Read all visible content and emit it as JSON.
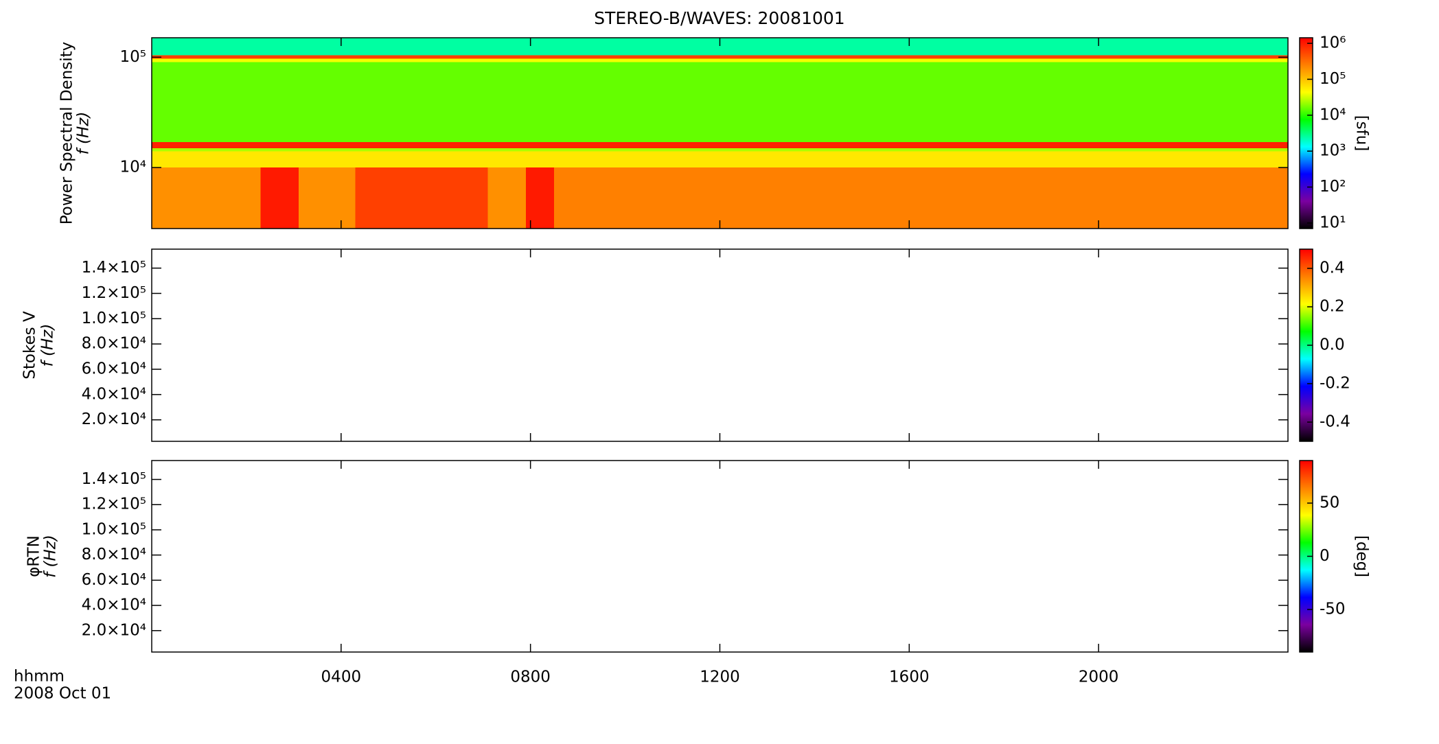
{
  "title": "STEREO-B/WAVES: 20081001",
  "time_axis": {
    "label": "hhmm",
    "date": "2008 Oct 01",
    "xlim": [
      0,
      24
    ],
    "xticks": [
      {
        "value": 4,
        "label": "0400"
      },
      {
        "value": 8,
        "label": "0800"
      },
      {
        "value": 12,
        "label": "1200"
      },
      {
        "value": 16,
        "label": "1600"
      },
      {
        "value": 20,
        "label": "2000"
      }
    ]
  },
  "chart_data": [
    {
      "type": "heatmap",
      "ylabel": [
        "Power Spectral Density",
        "f (Hz)"
      ],
      "ylog": true,
      "ylim": [
        2800,
        150000
      ],
      "yticks": [
        {
          "value": 10000,
          "label": "10⁴"
        },
        {
          "value": 100000,
          "label": "10⁵"
        }
      ],
      "x_edges": [
        0,
        2.3,
        3.1,
        4.3,
        7.1,
        7.9,
        8.5,
        24
      ],
      "y_edges": [
        2800,
        10000,
        14000,
        15000,
        17000,
        90000,
        97000,
        104000,
        150000
      ],
      "z": [
        [
          200000,
          1000000,
          200000,
          600000,
          200000,
          1000000,
          250000
        ],
        [
          60000,
          60000,
          60000,
          60000,
          60000,
          60000,
          60000
        ],
        [
          25000,
          25000,
          25000,
          25000,
          25000,
          25000,
          25000
        ],
        [
          900000,
          900000,
          900000,
          900000,
          900000,
          900000,
          900000
        ],
        [
          15000,
          15000,
          15000,
          15000,
          15000,
          15000,
          15000
        ],
        [
          40000,
          40000,
          40000,
          40000,
          40000,
          40000,
          40000
        ],
        [
          600000,
          600000,
          600000,
          600000,
          600000,
          600000,
          600000
        ],
        [
          2500,
          2500,
          2500,
          2500,
          2500,
          2500,
          2500
        ]
      ],
      "colormap": [
        "#000000",
        "#7b00a0",
        "#0000ff",
        "#00ffff",
        "#00ff00",
        "#ffff00",
        "#ff8000",
        "#ff0000"
      ],
      "color_log": true,
      "clim": [
        7,
        1430000
      ],
      "cticks": [
        {
          "value": 10,
          "label": "10¹"
        },
        {
          "value": 100,
          "label": "10²"
        },
        {
          "value": 1000,
          "label": "10³"
        },
        {
          "value": 10000,
          "label": "10⁴"
        },
        {
          "value": 100000,
          "label": "10⁵"
        },
        {
          "value": 1000000,
          "label": "10⁶"
        }
      ],
      "clabel": "[sfu]"
    },
    {
      "type": "heatmap",
      "ylabel": [
        "Stokes V",
        "f (Hz)"
      ],
      "ylog": false,
      "ylim": [
        3000,
        155000
      ],
      "yticks": [
        {
          "value": 20000,
          "label": "2.0×10⁴"
        },
        {
          "value": 40000,
          "label": "4.0×10⁴"
        },
        {
          "value": 60000,
          "label": "6.0×10⁴"
        },
        {
          "value": 80000,
          "label": "8.0×10⁴"
        },
        {
          "value": 100000,
          "label": "1.0×10⁵"
        },
        {
          "value": 120000,
          "label": "1.2×10⁵"
        },
        {
          "value": 140000,
          "label": "1.4×10⁵"
        }
      ],
      "colormap": [
        "#000000",
        "#7b00a0",
        "#0000ff",
        "#00ffff",
        "#00ff00",
        "#ffff00",
        "#ff8000",
        "#ff0000"
      ],
      "color_log": false,
      "clim": [
        -0.5,
        0.5
      ],
      "cticks": [
        -0.4,
        -0.2,
        {
          "value": 0,
          "label": "0.0"
        },
        0.2,
        0.4
      ]
    },
    {
      "type": "heatmap",
      "ylabel": [
        "φRTN",
        "f (Hz)"
      ],
      "ylog": false,
      "ylim": [
        3000,
        155000
      ],
      "yticks": [
        {
          "value": 20000,
          "label": "2.0×10⁴"
        },
        {
          "value": 40000,
          "label": "4.0×10⁴"
        },
        {
          "value": 60000,
          "label": "6.0×10⁴"
        },
        {
          "value": 80000,
          "label": "8.0×10⁴"
        },
        {
          "value": 100000,
          "label": "1.0×10⁵"
        },
        {
          "value": 120000,
          "label": "1.2×10⁵"
        },
        {
          "value": 140000,
          "label": "1.4×10⁵"
        }
      ],
      "colormap": [
        "#000000",
        "#7b00a0",
        "#0000ff",
        "#00ffff",
        "#00ff00",
        "#ffff00",
        "#ff8000",
        "#ff0000"
      ],
      "color_log": false,
      "clim": [
        -90,
        90
      ],
      "cticks": [
        -50,
        0,
        50
      ],
      "clabel": "[deg]"
    }
  ]
}
